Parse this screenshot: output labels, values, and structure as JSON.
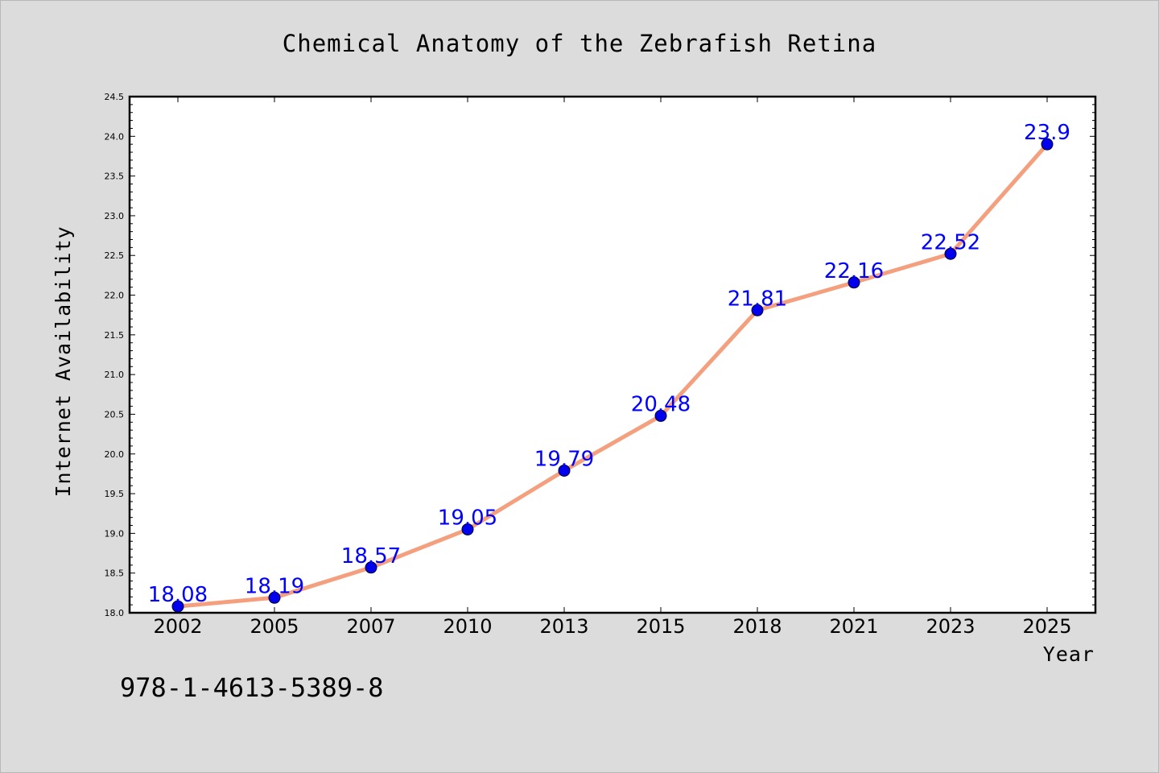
{
  "chart_data": {
    "type": "line",
    "title": "Chemical Anatomy of the Zebrafish Retina",
    "xlabel": "Year",
    "ylabel": "Internet Availability",
    "categories": [
      "2002",
      "2005",
      "2007",
      "2010",
      "2013",
      "2015",
      "2018",
      "2021",
      "2023",
      "2025"
    ],
    "series": [
      {
        "values": [
          18.08,
          18.19,
          18.57,
          19.05,
          19.79,
          20.48,
          21.81,
          22.16,
          22.52,
          23.9
        ],
        "data_labels": [
          "18.08",
          "18.19",
          "18.57",
          "19.05",
          "19.79",
          "20.48",
          "21.81",
          "22.16",
          "22.52",
          "23.9"
        ],
        "line_color": "#f4a07e",
        "marker_color": "#0000ee",
        "label_color": "#0000ff"
      }
    ],
    "ylim": [
      18.0,
      24.5
    ],
    "yticks": [
      18.0,
      18.5,
      19.0,
      19.5,
      20.0,
      20.5,
      21.0,
      21.5,
      22.0,
      22.5,
      23.0,
      23.5,
      24.0,
      24.5
    ],
    "ytick_labels": [
      "18.0",
      "18.5",
      "19.0",
      "19.5",
      "20.0",
      "20.5",
      "21.0",
      "21.5",
      "22.0",
      "22.5",
      "23.0",
      "23.5",
      "24.0",
      "24.5"
    ],
    "grid": false,
    "legend": "none"
  },
  "annotation": "978-1-4613-5389-8",
  "colors": {
    "figure_background": "#dcdcdc",
    "plot_background": "#ffffff",
    "axis": "#000000"
  }
}
